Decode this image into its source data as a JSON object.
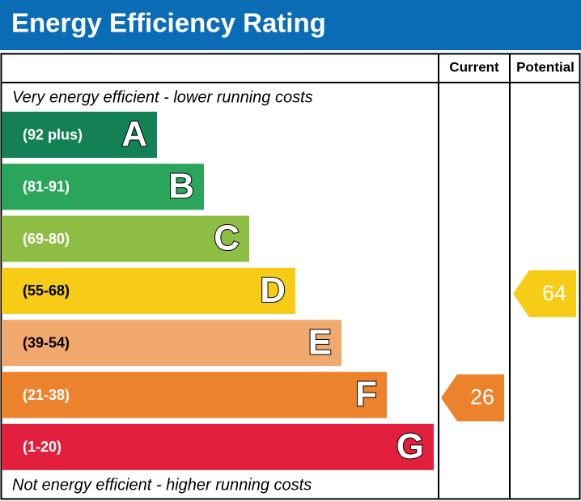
{
  "header": {
    "title": "Energy Efficiency Rating"
  },
  "columns": [
    "Current",
    "Potential"
  ],
  "top_note": "Very energy efficient - lower running costs",
  "bottom_note": "Not energy efficient - higher running costs",
  "bands": [
    {
      "letter": "A",
      "range": "(92 plus)",
      "color": "#138155"
    },
    {
      "letter": "B",
      "range": "(81-91)",
      "color": "#2ba55c"
    },
    {
      "letter": "C",
      "range": "(69-80)",
      "color": "#8dbd43"
    },
    {
      "letter": "D",
      "range": "(55-68)",
      "color": "#f6cc16"
    },
    {
      "letter": "E",
      "range": "(39-54)",
      "color": "#f1a86c"
    },
    {
      "letter": "F",
      "range": "(21-38)",
      "color": "#ec822b"
    },
    {
      "letter": "G",
      "range": "(1-20)",
      "color": "#e21f3c"
    }
  ],
  "current": {
    "value": 26,
    "color": "#ec822b"
  },
  "potential": {
    "value": 64,
    "color": "#f6cc16"
  }
}
